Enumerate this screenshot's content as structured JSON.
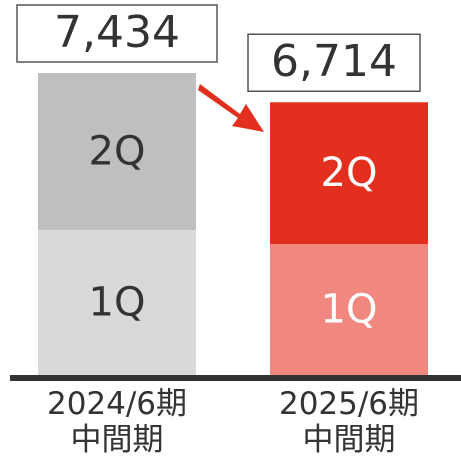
{
  "chart_data": {
    "type": "stacked_bar",
    "categories": [
      "2024/6期\n中間期",
      "2025/6期\n中間期"
    ],
    "series": [
      {
        "name": "1Q",
        "colors": [
          "#d9d9d9",
          "#f08880"
        ],
        "text_colors": [
          "#333333",
          "#ffffff"
        ],
        "values": [
          3570,
          3225
        ]
      },
      {
        "name": "2Q",
        "colors": [
          "#bfbfbf",
          "#e3301e"
        ],
        "text_colors": [
          "#333333",
          "#ffffff"
        ],
        "values": [
          3864,
          3489
        ]
      }
    ],
    "totals": [
      7434,
      6714
    ],
    "total_labels": [
      "7,434",
      "6,714"
    ]
  }
}
